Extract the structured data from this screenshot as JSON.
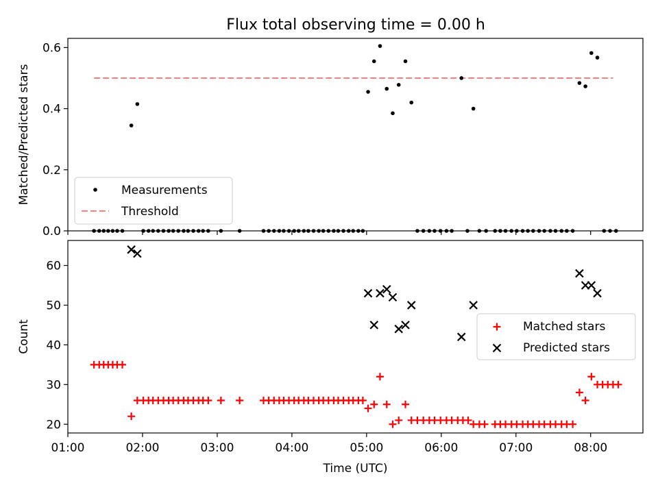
{
  "chart_data": [
    {
      "type": "scatter",
      "title": "Flux total observing time = 0.00 h",
      "xlabel": "",
      "ylabel": "Matched/Predicted stars",
      "xlim": [
        1.0,
        8.7
      ],
      "ylim": [
        0.0,
        0.63
      ],
      "xticks": [
        1,
        2,
        3,
        4,
        5,
        6,
        7,
        8
      ],
      "yticks": [
        0.0,
        0.2,
        0.4,
        0.6
      ],
      "ytick_labels": [
        "0.0",
        "0.2",
        "0.4",
        "0.6"
      ],
      "legend": {
        "position": "lower-left",
        "entries": [
          "Measurements",
          "Threshold"
        ]
      },
      "threshold": {
        "name": "Threshold",
        "value": 0.5,
        "x_range": [
          1.35,
          8.3
        ],
        "color": "#ff7f7f",
        "style": "dashed"
      },
      "series": [
        {
          "name": "Measurements",
          "color": "#000000",
          "points": [
            [
              1.35,
              0
            ],
            [
              1.42,
              0
            ],
            [
              1.48,
              0
            ],
            [
              1.54,
              0
            ],
            [
              1.6,
              0
            ],
            [
              1.66,
              0
            ],
            [
              1.73,
              0
            ],
            [
              1.85,
              0.345
            ],
            [
              1.93,
              0.415
            ],
            [
              2.01,
              0
            ],
            [
              2.08,
              0
            ],
            [
              2.14,
              0
            ],
            [
              2.21,
              0
            ],
            [
              2.28,
              0
            ],
            [
              2.35,
              0
            ],
            [
              2.41,
              0
            ],
            [
              2.48,
              0
            ],
            [
              2.55,
              0
            ],
            [
              2.61,
              0
            ],
            [
              2.68,
              0
            ],
            [
              2.75,
              0
            ],
            [
              2.81,
              0
            ],
            [
              2.88,
              0
            ],
            [
              3.05,
              0
            ],
            [
              3.3,
              0
            ],
            [
              3.62,
              0
            ],
            [
              3.69,
              0
            ],
            [
              3.76,
              0
            ],
            [
              3.83,
              0
            ],
            [
              3.89,
              0
            ],
            [
              3.96,
              0
            ],
            [
              4.03,
              0
            ],
            [
              4.09,
              0
            ],
            [
              4.16,
              0
            ],
            [
              4.22,
              0
            ],
            [
              4.29,
              0
            ],
            [
              4.36,
              0
            ],
            [
              4.42,
              0
            ],
            [
              4.49,
              0
            ],
            [
              4.56,
              0
            ],
            [
              4.62,
              0
            ],
            [
              4.69,
              0
            ],
            [
              4.76,
              0
            ],
            [
              4.82,
              0
            ],
            [
              4.89,
              0
            ],
            [
              4.95,
              0
            ],
            [
              5.02,
              0.455
            ],
            [
              5.1,
              0.555
            ],
            [
              5.18,
              0.605
            ],
            [
              5.27,
              0.465
            ],
            [
              5.35,
              0.385
            ],
            [
              5.43,
              0.478
            ],
            [
              5.52,
              0.555
            ],
            [
              5.6,
              0.42
            ],
            [
              5.68,
              0
            ],
            [
              5.76,
              0
            ],
            [
              5.84,
              0
            ],
            [
              5.91,
              0
            ],
            [
              5.99,
              0
            ],
            [
              6.07,
              0
            ],
            [
              6.14,
              0
            ],
            [
              6.27,
              0.5
            ],
            [
              6.35,
              0
            ],
            [
              6.43,
              0.4
            ],
            [
              6.51,
              0
            ],
            [
              6.6,
              0
            ],
            [
              6.72,
              0
            ],
            [
              6.79,
              0
            ],
            [
              6.86,
              0
            ],
            [
              6.94,
              0
            ],
            [
              7.01,
              0
            ],
            [
              7.09,
              0
            ],
            [
              7.16,
              0
            ],
            [
              7.23,
              0
            ],
            [
              7.31,
              0
            ],
            [
              7.38,
              0
            ],
            [
              7.46,
              0
            ],
            [
              7.53,
              0
            ],
            [
              7.61,
              0
            ],
            [
              7.68,
              0
            ],
            [
              7.76,
              0
            ],
            [
              7.85,
              0.484
            ],
            [
              7.93,
              0.473
            ],
            [
              8.01,
              0.582
            ],
            [
              8.09,
              0.567
            ],
            [
              8.18,
              0
            ],
            [
              8.26,
              0
            ],
            [
              8.34,
              0
            ]
          ]
        }
      ]
    },
    {
      "type": "scatter",
      "title": "",
      "xlabel": "Time (UTC)",
      "ylabel": "Count",
      "xlim": [
        1.0,
        8.7
      ],
      "ylim": [
        17.8,
        66.3
      ],
      "xticks": [
        1,
        2,
        3,
        4,
        5,
        6,
        7,
        8
      ],
      "xtick_labels": [
        "01:00",
        "02:00",
        "03:00",
        "04:00",
        "05:00",
        "06:00",
        "07:00",
        "08:00"
      ],
      "yticks": [
        20,
        30,
        40,
        50,
        60
      ],
      "ytick_labels": [
        "20",
        "30",
        "40",
        "50",
        "60"
      ],
      "legend": {
        "position": "center-right",
        "entries": [
          "Matched stars",
          "Predicted stars"
        ]
      },
      "series": [
        {
          "name": "Matched stars",
          "marker": "plus",
          "color": "#ff0000",
          "points": [
            [
              1.35,
              35
            ],
            [
              1.42,
              35
            ],
            [
              1.48,
              35
            ],
            [
              1.54,
              35
            ],
            [
              1.6,
              35
            ],
            [
              1.66,
              35
            ],
            [
              1.73,
              35
            ],
            [
              1.85,
              22
            ],
            [
              1.93,
              26
            ],
            [
              2.01,
              26
            ],
            [
              2.08,
              26
            ],
            [
              2.14,
              26
            ],
            [
              2.21,
              26
            ],
            [
              2.28,
              26
            ],
            [
              2.35,
              26
            ],
            [
              2.41,
              26
            ],
            [
              2.48,
              26
            ],
            [
              2.55,
              26
            ],
            [
              2.61,
              26
            ],
            [
              2.68,
              26
            ],
            [
              2.75,
              26
            ],
            [
              2.81,
              26
            ],
            [
              2.88,
              26
            ],
            [
              3.05,
              26
            ],
            [
              3.3,
              26
            ],
            [
              3.62,
              26
            ],
            [
              3.69,
              26
            ],
            [
              3.76,
              26
            ],
            [
              3.83,
              26
            ],
            [
              3.89,
              26
            ],
            [
              3.96,
              26
            ],
            [
              4.03,
              26
            ],
            [
              4.09,
              26
            ],
            [
              4.16,
              26
            ],
            [
              4.22,
              26
            ],
            [
              4.29,
              26
            ],
            [
              4.36,
              26
            ],
            [
              4.42,
              26
            ],
            [
              4.49,
              26
            ],
            [
              4.56,
              26
            ],
            [
              4.62,
              26
            ],
            [
              4.69,
              26
            ],
            [
              4.76,
              26
            ],
            [
              4.82,
              26
            ],
            [
              4.89,
              26
            ],
            [
              4.95,
              26
            ],
            [
              5.02,
              24
            ],
            [
              5.1,
              25
            ],
            [
              5.18,
              32
            ],
            [
              5.27,
              25
            ],
            [
              5.35,
              20
            ],
            [
              5.43,
              21
            ],
            [
              5.52,
              25
            ],
            [
              5.6,
              21
            ],
            [
              5.68,
              21
            ],
            [
              5.76,
              21
            ],
            [
              5.84,
              21
            ],
            [
              5.91,
              21
            ],
            [
              5.99,
              21
            ],
            [
              6.07,
              21
            ],
            [
              6.14,
              21
            ],
            [
              6.22,
              21
            ],
            [
              6.29,
              21
            ],
            [
              6.36,
              21
            ],
            [
              6.43,
              20
            ],
            [
              6.51,
              20
            ],
            [
              6.58,
              20
            ],
            [
              6.72,
              20
            ],
            [
              6.79,
              20
            ],
            [
              6.86,
              20
            ],
            [
              6.94,
              20
            ],
            [
              7.01,
              20
            ],
            [
              7.09,
              20
            ],
            [
              7.16,
              20
            ],
            [
              7.23,
              20
            ],
            [
              7.31,
              20
            ],
            [
              7.38,
              20
            ],
            [
              7.46,
              20
            ],
            [
              7.53,
              20
            ],
            [
              7.61,
              20
            ],
            [
              7.68,
              20
            ],
            [
              7.76,
              20
            ],
            [
              7.85,
              28
            ],
            [
              7.93,
              26
            ],
            [
              8.01,
              32
            ],
            [
              8.09,
              30
            ],
            [
              8.16,
              30
            ],
            [
              8.23,
              30
            ],
            [
              8.3,
              30
            ],
            [
              8.37,
              30
            ]
          ]
        },
        {
          "name": "Predicted stars",
          "marker": "x",
          "color": "#000000",
          "points": [
            [
              1.85,
              64
            ],
            [
              1.93,
              63
            ],
            [
              5.02,
              53
            ],
            [
              5.1,
              45
            ],
            [
              5.18,
              53
            ],
            [
              5.27,
              54
            ],
            [
              5.35,
              52
            ],
            [
              5.43,
              44
            ],
            [
              5.52,
              45
            ],
            [
              5.6,
              50
            ],
            [
              6.27,
              42
            ],
            [
              6.43,
              50
            ],
            [
              7.85,
              58
            ],
            [
              7.93,
              55
            ],
            [
              8.01,
              55
            ],
            [
              8.09,
              53
            ]
          ]
        }
      ]
    }
  ]
}
